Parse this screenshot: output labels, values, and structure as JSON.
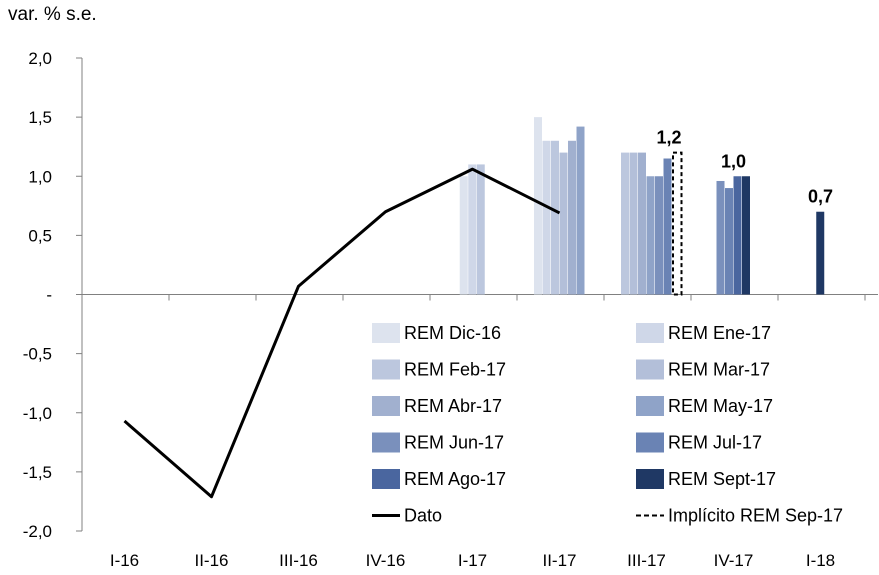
{
  "chart_data": {
    "type": "bar",
    "ylabel": "var. % s.e.",
    "ylim": [
      -2.0,
      2.0
    ],
    "yticks": [
      {
        "v": 2.0,
        "label": "2,0"
      },
      {
        "v": 1.5,
        "label": "1,5"
      },
      {
        "v": 1.0,
        "label": "1,0"
      },
      {
        "v": 0.5,
        "label": "0,5"
      },
      {
        "v": 0.0,
        "label": "-"
      },
      {
        "v": -0.5,
        "label": "-0,5"
      },
      {
        "v": -1.0,
        "label": "-1,0"
      },
      {
        "v": -1.5,
        "label": "-1,5"
      },
      {
        "v": -2.0,
        "label": "-2,0"
      }
    ],
    "categories": [
      "I-16",
      "II-16",
      "III-16",
      "IV-16",
      "I-17",
      "II-17",
      "III-17",
      "IV-17",
      "I-18"
    ],
    "series": [
      {
        "name": "REM Dic-16",
        "color": "#dde3ee",
        "values": [
          null,
          null,
          null,
          null,
          1.0,
          1.5,
          null,
          null,
          null
        ]
      },
      {
        "name": "REM Ene-17",
        "color": "#cfd7e8",
        "values": [
          null,
          null,
          null,
          null,
          1.1,
          1.3,
          null,
          null,
          null
        ]
      },
      {
        "name": "REM Feb-17",
        "color": "#bcc7de",
        "values": [
          null,
          null,
          null,
          null,
          1.1,
          1.3,
          1.2,
          null,
          null
        ]
      },
      {
        "name": "REM Mar-17",
        "color": "#b3bfd9",
        "values": [
          null,
          null,
          null,
          null,
          null,
          1.2,
          1.2,
          null,
          null
        ]
      },
      {
        "name": "REM Abr-17",
        "color": "#a1b0cf",
        "values": [
          null,
          null,
          null,
          null,
          null,
          1.3,
          1.2,
          null,
          null
        ]
      },
      {
        "name": "REM May-17",
        "color": "#8fa3c8",
        "values": [
          null,
          null,
          null,
          null,
          null,
          1.42,
          1.0,
          null,
          null
        ]
      },
      {
        "name": "REM Jun-17",
        "color": "#7a90bc",
        "values": [
          null,
          null,
          null,
          null,
          null,
          null,
          1.0,
          0.96,
          null
        ]
      },
      {
        "name": "REM Jul-17",
        "color": "#6a83b4",
        "values": [
          null,
          null,
          null,
          null,
          null,
          null,
          1.15,
          0.9,
          null
        ]
      },
      {
        "name": "REM Ago-17",
        "color": "#4a669f",
        "values": [
          null,
          null,
          null,
          null,
          null,
          null,
          null,
          1.0,
          null
        ]
      },
      {
        "name": "REM Sept-17",
        "color": "#1f3864",
        "values": [
          null,
          null,
          null,
          null,
          null,
          null,
          null,
          1.0,
          0.7
        ]
      }
    ],
    "line": {
      "name": "Dato",
      "color": "#000000",
      "values": [
        -1.07,
        -1.71,
        0.07,
        0.7,
        1.06,
        0.69,
        null,
        null,
        null
      ]
    },
    "implied": {
      "name": "Implícito REM Sep-17",
      "category": "III-17",
      "value": 1.2
    },
    "data_labels": [
      {
        "category": "III-17",
        "text": "1,2",
        "value": 1.2
      },
      {
        "category": "IV-17",
        "text": "1,0",
        "value": 1.0
      },
      {
        "category": "I-18",
        "text": "0,7",
        "value": 0.7
      }
    ],
    "legend": {
      "placement": "bottom-right",
      "entries": [
        {
          "name": "REM Dic-16",
          "kind": "bar",
          "color": "#dde3ee"
        },
        {
          "name": "REM Ene-17",
          "kind": "bar",
          "color": "#cfd7e8"
        },
        {
          "name": "REM Feb-17",
          "kind": "bar",
          "color": "#bcc7de"
        },
        {
          "name": "REM Mar-17",
          "kind": "bar",
          "color": "#b3bfd9"
        },
        {
          "name": "REM Abr-17",
          "kind": "bar",
          "color": "#a1b0cf"
        },
        {
          "name": "REM May-17",
          "kind": "bar",
          "color": "#8fa3c8"
        },
        {
          "name": "REM Jun-17",
          "kind": "bar",
          "color": "#7a90bc"
        },
        {
          "name": "REM Jul-17",
          "kind": "bar",
          "color": "#6a83b4"
        },
        {
          "name": "REM Ago-17",
          "kind": "bar",
          "color": "#4a669f"
        },
        {
          "name": "REM Sept-17",
          "kind": "bar",
          "color": "#1f3864"
        },
        {
          "name": "Dato",
          "kind": "line",
          "color": "#000000"
        },
        {
          "name": "Implícito REM Sep-17",
          "kind": "dash",
          "color": "#000000"
        }
      ]
    }
  }
}
